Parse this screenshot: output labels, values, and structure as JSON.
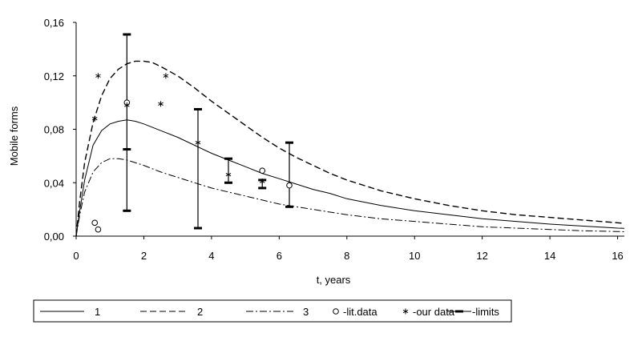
{
  "chart_data": {
    "type": "line",
    "xlabel": "t, years",
    "ylabel": "Mobile forms",
    "xlim": [
      0,
      16.2
    ],
    "ylim": [
      0,
      0.16
    ],
    "x_ticks": [
      0,
      2,
      4,
      6,
      8,
      10,
      12,
      14,
      16
    ],
    "x_tick_labels": [
      "0",
      "2",
      "4",
      "6",
      "8",
      "10",
      "12",
      "14",
      "16"
    ],
    "y_ticks": [
      0,
      0.04,
      0.08,
      0.12,
      0.16
    ],
    "y_tick_labels": [
      "0,00",
      "0,04",
      "0,08",
      "0,12",
      "0,16"
    ],
    "grid": false,
    "legend_position": "bottom",
    "series": [
      {
        "name": "1",
        "style": "solid",
        "x": [
          0,
          0.1,
          0.25,
          0.5,
          0.75,
          1.0,
          1.25,
          1.5,
          1.75,
          2,
          2.5,
          3,
          3.5,
          4,
          4.5,
          5,
          5.5,
          6,
          6.5,
          7,
          7.5,
          8,
          9,
          10,
          11,
          12,
          13,
          14,
          15,
          16,
          16.2
        ],
        "y": [
          0,
          0.018,
          0.042,
          0.068,
          0.079,
          0.084,
          0.086,
          0.087,
          0.086,
          0.084,
          0.079,
          0.074,
          0.068,
          0.062,
          0.057,
          0.052,
          0.047,
          0.043,
          0.039,
          0.035,
          0.032,
          0.028,
          0.023,
          0.019,
          0.016,
          0.013,
          0.011,
          0.009,
          0.0075,
          0.006,
          0.0058
        ]
      },
      {
        "name": "2",
        "style": "dashed",
        "x": [
          0,
          0.1,
          0.25,
          0.5,
          0.75,
          1.0,
          1.25,
          1.5,
          1.75,
          2,
          2.25,
          2.5,
          3,
          3.5,
          4,
          4.5,
          5,
          5.5,
          6,
          6.5,
          7,
          7.5,
          8,
          9,
          10,
          11,
          12,
          13,
          14,
          15,
          16,
          16.2
        ],
        "y": [
          0,
          0.025,
          0.055,
          0.085,
          0.105,
          0.118,
          0.125,
          0.129,
          0.131,
          0.131,
          0.13,
          0.127,
          0.12,
          0.111,
          0.101,
          0.092,
          0.083,
          0.074,
          0.066,
          0.059,
          0.053,
          0.047,
          0.042,
          0.034,
          0.028,
          0.023,
          0.019,
          0.016,
          0.014,
          0.012,
          0.01,
          0.0095
        ]
      },
      {
        "name": "3",
        "style": "dash-dot",
        "x": [
          0,
          0.1,
          0.25,
          0.5,
          0.75,
          1.0,
          1.25,
          1.5,
          2,
          2.5,
          3,
          3.5,
          4,
          4.5,
          5,
          5.5,
          6,
          6.5,
          7,
          8,
          9,
          10,
          11,
          12,
          13,
          14,
          15,
          16,
          16.2
        ],
        "y": [
          0,
          0.015,
          0.033,
          0.048,
          0.055,
          0.058,
          0.058,
          0.057,
          0.053,
          0.048,
          0.044,
          0.04,
          0.036,
          0.033,
          0.03,
          0.027,
          0.024,
          0.022,
          0.02,
          0.016,
          0.013,
          0.011,
          0.009,
          0.007,
          0.006,
          0.005,
          0.004,
          0.0035,
          0.0033
        ]
      }
    ],
    "lit_data": {
      "name": "-lit.data",
      "x": [
        0.55,
        0.65,
        1.5,
        5.5,
        6.3
      ],
      "y": [
        0.01,
        0.005,
        0.1,
        0.049,
        0.038
      ]
    },
    "our_data": {
      "name": "-our data",
      "x": [
        0.55,
        0.65,
        1.5,
        2.5,
        2.65,
        3.6,
        4.5,
        5.5
      ],
      "y": [
        0.088,
        0.12,
        0.098,
        0.099,
        0.12,
        0.07,
        0.046,
        0.041
      ]
    },
    "limits": {
      "name": "-limits",
      "x": [
        1.5,
        3.6,
        4.5,
        5.5,
        6.3
      ],
      "low": [
        0.019,
        0.006,
        0.04,
        0.036,
        0.022
      ],
      "high": [
        0.151,
        0.095,
        0.058,
        0.042,
        0.07
      ],
      "marks": [
        [
          0.065
        ],
        [],
        [],
        [],
        []
      ]
    },
    "legend": [
      "1",
      "2",
      "3",
      "-lit.data",
      "-our data",
      "-limits"
    ]
  }
}
